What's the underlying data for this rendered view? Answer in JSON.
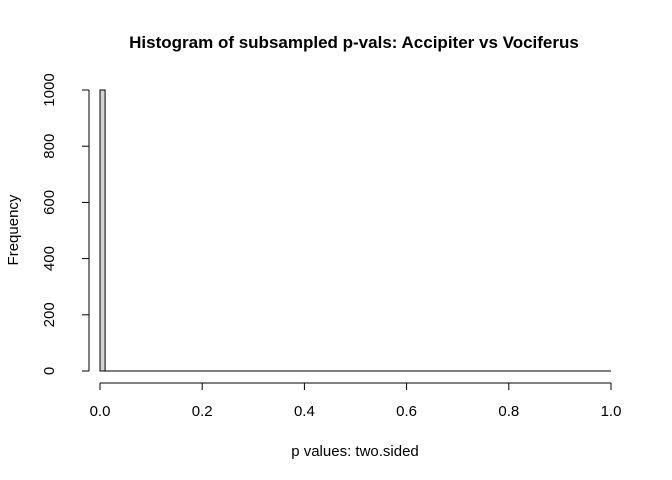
{
  "chart_data": {
    "type": "bar",
    "title": "Histogram of subsampled p-vals: Accipiter vs Vociferus",
    "xlabel": "p values: two.sided",
    "ylabel": "Frequency",
    "bin_width": 0.01,
    "bins": [
      {
        "start": 0.0,
        "end": 0.01,
        "count": 1000
      }
    ],
    "empty_bins_count": 0,
    "xlim": [
      0,
      1
    ],
    "ylim": [
      0,
      1000
    ],
    "x_ticks": [
      "0.0",
      "0.2",
      "0.4",
      "0.6",
      "0.8",
      "1.0"
    ],
    "y_ticks": [
      "0",
      "200",
      "400",
      "600",
      "800",
      "1000"
    ],
    "bar_fill": "#d3d3d3",
    "bar_stroke": "#000000",
    "grid": false,
    "legend": "none"
  }
}
